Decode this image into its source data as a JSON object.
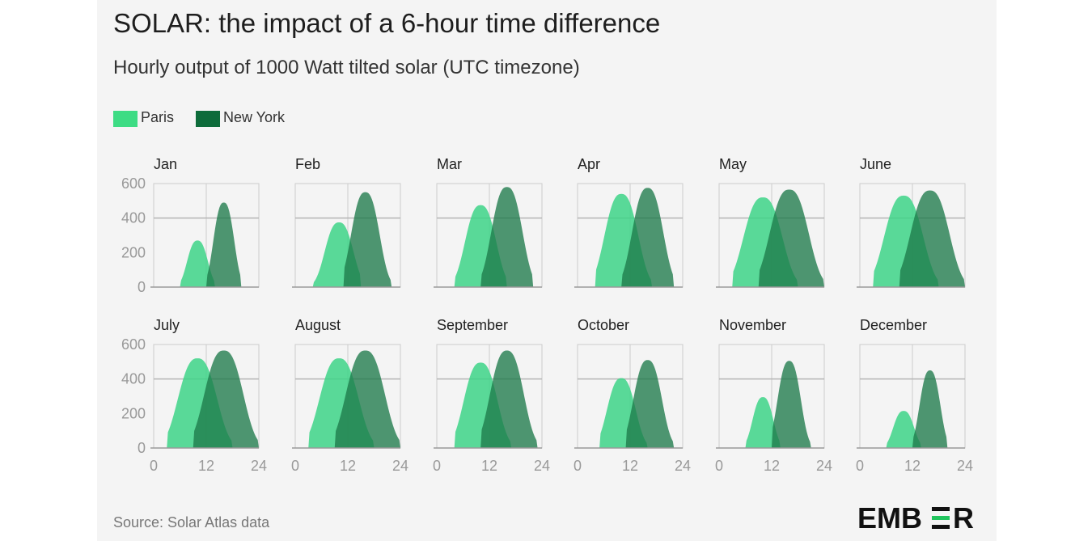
{
  "title": "SOLAR: the impact of a 6-hour time difference",
  "subtitle": "Hourly output of 1000 Watt tilted solar (UTC timezone)",
  "legend": [
    {
      "label": "Paris",
      "color": "#3ddc84"
    },
    {
      "label": "New York",
      "color": "#0d6b3a"
    }
  ],
  "source": "Source: Solar Atlas data",
  "logo": {
    "text": "EMBER"
  },
  "colors": {
    "paris_fill": "#3dd487",
    "newyork_fill": "#1e7a4a",
    "grid": "#cccccc",
    "axis": "#999999",
    "background": "#f4f4f4"
  },
  "chart_data": {
    "type": "area",
    "xlabel": "",
    "ylabel": "",
    "xlim": [
      0,
      24
    ],
    "ylim": [
      0,
      600
    ],
    "x_ticks": [
      0,
      12,
      24
    ],
    "y_ticks": [
      0,
      200,
      400,
      600
    ],
    "grid": true,
    "legend_position": "top-left",
    "panels": [
      {
        "name": "Jan",
        "series": [
          {
            "name": "Paris",
            "peak_hour": 10,
            "peak": 270,
            "start": 6,
            "end": 14
          },
          {
            "name": "New York",
            "peak_hour": 16,
            "peak": 490,
            "start": 12,
            "end": 20
          }
        ]
      },
      {
        "name": "Feb",
        "series": [
          {
            "name": "Paris",
            "peak_hour": 10,
            "peak": 375,
            "start": 4,
            "end": 15
          },
          {
            "name": "New York",
            "peak_hour": 16,
            "peak": 550,
            "start": 11,
            "end": 22
          }
        ]
      },
      {
        "name": "Mar",
        "series": [
          {
            "name": "Paris",
            "peak_hour": 10,
            "peak": 475,
            "start": 4,
            "end": 16
          },
          {
            "name": "New York",
            "peak_hour": 16,
            "peak": 580,
            "start": 10,
            "end": 22
          }
        ]
      },
      {
        "name": "Apr",
        "series": [
          {
            "name": "Paris",
            "peak_hour": 10,
            "peak": 540,
            "start": 4,
            "end": 17
          },
          {
            "name": "New York",
            "peak_hour": 16,
            "peak": 575,
            "start": 10,
            "end": 22
          }
        ]
      },
      {
        "name": "May",
        "series": [
          {
            "name": "Paris",
            "peak_hour": 10,
            "peak": 520,
            "start": 3,
            "end": 18
          },
          {
            "name": "New York",
            "peak_hour": 16,
            "peak": 565,
            "start": 9,
            "end": 24
          }
        ]
      },
      {
        "name": "June",
        "series": [
          {
            "name": "Paris",
            "peak_hour": 10,
            "peak": 530,
            "start": 3,
            "end": 18
          },
          {
            "name": "New York",
            "peak_hour": 16,
            "peak": 560,
            "start": 9,
            "end": 24
          }
        ]
      },
      {
        "name": "July",
        "series": [
          {
            "name": "Paris",
            "peak_hour": 10,
            "peak": 520,
            "start": 3,
            "end": 18
          },
          {
            "name": "New York",
            "peak_hour": 16,
            "peak": 565,
            "start": 9,
            "end": 24
          }
        ]
      },
      {
        "name": "August",
        "series": [
          {
            "name": "Paris",
            "peak_hour": 10,
            "peak": 520,
            "start": 3,
            "end": 18
          },
          {
            "name": "New York",
            "peak_hour": 16,
            "peak": 565,
            "start": 9,
            "end": 24
          }
        ]
      },
      {
        "name": "September",
        "series": [
          {
            "name": "Paris",
            "peak_hour": 10,
            "peak": 495,
            "start": 4,
            "end": 17
          },
          {
            "name": "New York",
            "peak_hour": 16,
            "peak": 565,
            "start": 10,
            "end": 23
          }
        ]
      },
      {
        "name": "October",
        "series": [
          {
            "name": "Paris",
            "peak_hour": 10,
            "peak": 405,
            "start": 5,
            "end": 16
          },
          {
            "name": "New York",
            "peak_hour": 16,
            "peak": 510,
            "start": 11,
            "end": 22
          }
        ]
      },
      {
        "name": "November",
        "series": [
          {
            "name": "Paris",
            "peak_hour": 10,
            "peak": 295,
            "start": 6,
            "end": 14
          },
          {
            "name": "New York",
            "peak_hour": 16,
            "peak": 505,
            "start": 12,
            "end": 21
          }
        ]
      },
      {
        "name": "December",
        "series": [
          {
            "name": "Paris",
            "peak_hour": 10,
            "peak": 215,
            "start": 6,
            "end": 14
          },
          {
            "name": "New York",
            "peak_hour": 16,
            "peak": 450,
            "start": 12,
            "end": 20
          }
        ]
      }
    ]
  }
}
